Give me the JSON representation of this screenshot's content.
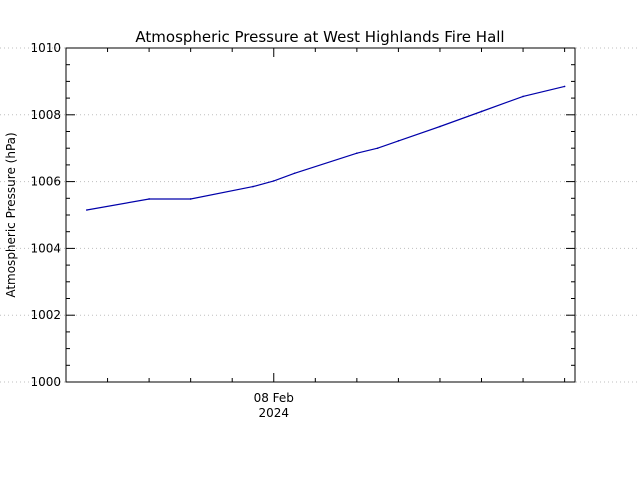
{
  "chart_data": {
    "type": "line",
    "title": "Atmospheric Pressure at West Highlands Fire Hall",
    "ylabel": "Atmospheric Pressure (hPa)",
    "xlabel": "",
    "ylim": [
      1000,
      1010
    ],
    "yticks": [
      1000,
      1002,
      1004,
      1006,
      1008,
      1010
    ],
    "ytick_labels": [
      "1000",
      "1002",
      "1004",
      "1006",
      "1008",
      "1010"
    ],
    "xlim": [
      "2024-02-07T14:00",
      "2024-02-08T14:30"
    ],
    "xticks": [
      {
        "x": "2024-02-08T00:00",
        "line1": "08 Feb",
        "line2": "2024"
      }
    ],
    "grid": "horizontal-dotted",
    "line_color": "#0000aa",
    "series": [
      {
        "x": [
          "2024-02-07T15:00",
          "2024-02-07T18:00",
          "2024-02-07T20:00",
          "2024-02-07T23:00",
          "2024-02-08T00:00",
          "2024-02-08T01:00",
          "2024-02-08T04:00",
          "2024-02-08T05:00",
          "2024-02-08T06:00",
          "2024-02-08T08:00",
          "2024-02-08T10:00",
          "2024-02-08T12:00",
          "2024-02-08T14:00"
        ],
        "y": [
          1005.15,
          1005.48,
          1005.48,
          1005.85,
          1006.02,
          1006.25,
          1006.85,
          1007.0,
          1007.22,
          1007.65,
          1008.1,
          1008.55,
          1008.85
        ]
      }
    ]
  }
}
